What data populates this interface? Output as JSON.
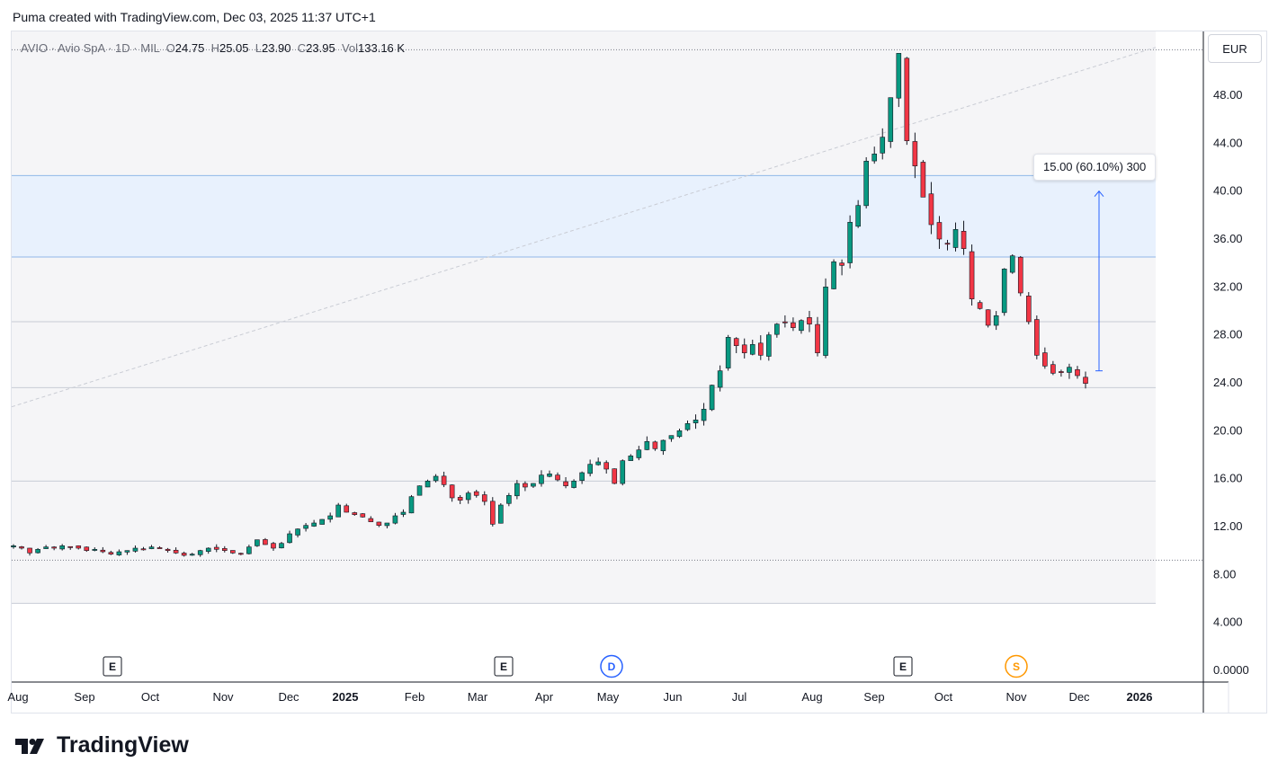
{
  "header": {
    "caption": "Puma created with TradingView.com, Dec 03, 2025 11:37 UTC+1"
  },
  "legend": {
    "symbol": "AVIO",
    "name": "Avio SpA",
    "interval": "1D",
    "exchange": "MIL",
    "sep": " · ",
    "o_label": "O",
    "o_value": "24.75",
    "h_label": "H",
    "h_value": "25.05",
    "l_label": "L",
    "l_value": "23.90",
    "c_label": "C",
    "c_value": "23.95",
    "vol_label": "Vol",
    "vol_value": "133.16 K"
  },
  "currency": "EUR",
  "measure": {
    "label": "15.00 (60.10%) 300"
  },
  "brand": {
    "name": "TradingView"
  },
  "colors": {
    "up": "#089981",
    "down": "#f23645",
    "wick": "#131722",
    "measure": "#2962ff",
    "zone": "#e8f1fd",
    "zone_line": "#90b8e8",
    "event_e": "#131722",
    "event_d": "#2962ff",
    "event_s": "#ff9800"
  },
  "chart_data": {
    "type": "candlestick",
    "symbol": "AVIO",
    "currency": "EUR",
    "ylim": [
      0,
      52
    ],
    "y_ticks": [
      "48.00",
      "44.00",
      "40.00",
      "36.00",
      "32.00",
      "28.00",
      "24.00",
      "20.00",
      "16.00",
      "12.00",
      "8.00",
      "4.000",
      "0.0000"
    ],
    "x_ticks": [
      "Aug",
      "Sep",
      "Oct",
      "Nov",
      "Dec",
      "2025",
      "Feb",
      "Mar",
      "Apr",
      "May",
      "Jun",
      "Jul",
      "Aug",
      "Sep",
      "Oct",
      "Nov",
      "Dec",
      "2026"
    ],
    "bold_x_ticks": [
      "2025",
      "2026"
    ],
    "levels": [
      51.8,
      41.3,
      34.5,
      29.1,
      23.6,
      15.8,
      9.2,
      5.6
    ],
    "dotted_levels": [
      51.8,
      9.2
    ],
    "zone": [
      34.5,
      41.3
    ],
    "diagonal": {
      "from": [
        0,
        22.0
      ],
      "to": [
        1,
        52.0
      ]
    },
    "measure": {
      "from": 25.0,
      "to": 40.0,
      "change": 15.0,
      "percent": 60.1,
      "bars": 300
    },
    "events": [
      {
        "type": "E",
        "month": "Sep 2024"
      },
      {
        "type": "E",
        "month": "Mar 2025"
      },
      {
        "type": "D",
        "month": "May 2025"
      },
      {
        "type": "E",
        "month": "Sep 2025"
      },
      {
        "type": "S",
        "month": "Nov 2025"
      }
    ],
    "series": [
      {
        "name": "AVIO",
        "close": [
          10.4,
          10.2,
          9.8,
          10.1,
          10.3,
          10.2,
          10.4,
          10.3,
          10.2,
          10.0,
          10.1,
          9.9,
          9.7,
          9.9,
          10.0,
          10.2,
          10.1,
          10.3,
          10.2,
          10.0,
          9.8,
          9.6,
          9.7,
          10.0,
          10.2,
          10.1,
          10.0,
          9.8,
          9.7,
          10.3,
          10.9,
          10.5,
          10.2,
          10.6,
          11.4,
          11.8,
          12.1,
          12.3,
          12.6,
          12.9,
          13.8,
          13.2,
          13.0,
          12.8,
          12.4,
          12.1,
          12.3,
          12.9,
          13.2,
          14.5,
          15.4,
          15.8,
          16.2,
          15.5,
          14.4,
          14.2,
          14.8,
          14.6,
          14.1,
          12.2,
          13.8,
          14.6,
          15.6,
          15.3,
          15.6,
          16.3,
          16.4,
          15.9,
          15.4,
          15.8,
          16.5,
          17.2,
          17.4,
          16.8,
          15.6,
          17.5,
          17.9,
          18.4,
          19.1,
          18.5,
          19.2,
          19.6,
          20.0,
          20.6,
          20.9,
          21.8,
          23.8,
          25.0,
          27.8,
          27.1,
          26.5,
          27.2,
          26.3,
          28.0,
          28.9,
          29.0,
          28.6,
          29.2,
          28.9,
          26.5,
          32.0,
          34.1,
          33.8,
          37.4,
          38.8,
          42.5,
          43.1,
          44.5,
          47.8,
          51.5,
          44.2,
          42.1,
          39.5,
          37.2,
          36.0,
          35.6,
          36.8,
          35.2,
          31.0,
          30.2,
          28.8,
          29.6,
          33.5,
          34.6,
          31.5,
          29.1,
          26.3,
          25.4,
          24.8,
          24.9,
          25.3,
          24.6,
          23.95
        ]
      }
    ]
  }
}
